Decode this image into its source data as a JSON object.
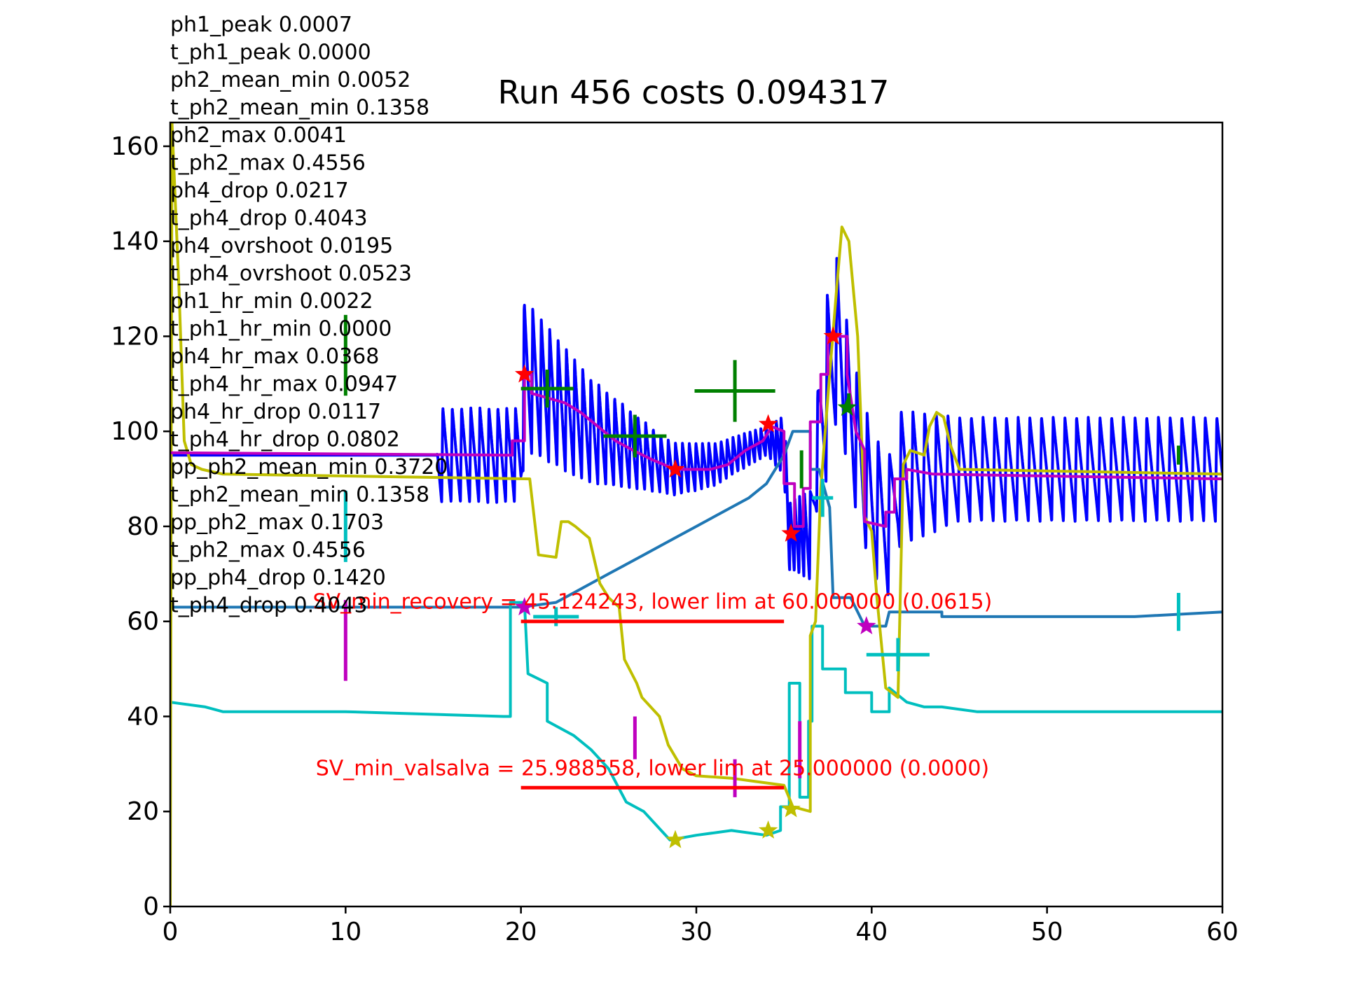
{
  "chart_data": {
    "type": "line",
    "title": "Run 456 costs 0.094317",
    "xlabel": "",
    "ylabel": "",
    "xlim": [
      0,
      60
    ],
    "ylim": [
      0,
      165
    ],
    "xticks": [
      0,
      10,
      20,
      30,
      40,
      50,
      60
    ],
    "yticks": [
      0,
      20,
      40,
      60,
      80,
      100,
      120,
      140,
      160
    ],
    "grid": false,
    "colors": {
      "blue": "#0000ff",
      "steel": "#1f77b4",
      "cyan": "#00bfbf",
      "olive": "#bfbf00",
      "magenta": "#bf00bf",
      "green": "#008000",
      "red": "#ff0000"
    },
    "metrics_text": [
      "ph1_peak 0.0007",
      "t_ph1_peak 0.0000",
      "ph2_mean_min 0.0052",
      "t_ph2_mean_min 0.1358",
      "ph2_max 0.0041",
      "t_ph2_max 0.4556",
      "ph4_drop 0.0217",
      "t_ph4_drop 0.4043",
      "ph4_ovrshoot 0.0195",
      "t_ph4_ovrshoot 0.0523",
      "ph1_hr_min 0.0022",
      "t_ph1_hr_min 0.0000",
      "ph4_hr_max 0.0368",
      "t_ph4_hr_max 0.0947",
      "ph4_hr_drop 0.0117",
      "t_ph4_hr_drop 0.0802",
      "pp_ph2_mean_min 0.3720",
      "t_ph2_mean_min 0.1358",
      "pp_ph2_max 0.1703",
      "t_ph2_max 0.4556",
      "pp_ph4_drop 0.1420",
      "t_ph4_drop 0.4043"
    ],
    "limit_annotations": [
      {
        "text": "SV_min_recovery = 45.124243, lower lim at 60.000000 (0.0615)",
        "x_start": 20,
        "x_end": 35,
        "y": 60
      },
      {
        "text": "SV_min_valsalva = 25.988558, lower lim at 25.000000 (0.0000)",
        "x_start": 20,
        "x_end": 35,
        "y": 25
      }
    ],
    "series": [
      {
        "color": "blue",
        "style": "pulsatile",
        "base": [
          [
            0,
            95
          ],
          [
            15.2,
            95
          ],
          [
            20,
            95
          ],
          [
            20.2,
            112
          ],
          [
            24,
            100
          ],
          [
            28.7,
            92
          ],
          [
            31,
            93
          ],
          [
            34,
            98
          ],
          [
            35,
            97
          ],
          [
            35.3,
            78
          ],
          [
            36.5,
            78
          ],
          [
            37,
            100
          ],
          [
            38,
            120
          ],
          [
            39,
            100
          ],
          [
            40,
            85
          ],
          [
            41,
            80
          ],
          [
            41.5,
            90
          ],
          [
            45,
            92
          ],
          [
            60,
            92
          ]
        ],
        "amp": [
          [
            0,
            0
          ],
          [
            15.2,
            0
          ],
          [
            15.3,
            20
          ],
          [
            20,
            20
          ],
          [
            20.2,
            32
          ],
          [
            28,
            12
          ],
          [
            34,
            6
          ],
          [
            35.2,
            14
          ],
          [
            36.8,
            20
          ],
          [
            37.5,
            40
          ],
          [
            38.5,
            30
          ],
          [
            41,
            30
          ],
          [
            45,
            22
          ],
          [
            60,
            22
          ]
        ],
        "bpm": [
          [
            0,
            75
          ],
          [
            28,
            140
          ],
          [
            30,
            160
          ],
          [
            34,
            200
          ],
          [
            35,
            230
          ],
          [
            36,
            220
          ],
          [
            37,
            110
          ],
          [
            38,
            110
          ],
          [
            41,
            90
          ],
          [
            60,
            90
          ]
        ]
      },
      {
        "color": "steel",
        "style": "line",
        "points": [
          [
            0,
            63
          ],
          [
            20,
            63
          ],
          [
            22,
            64
          ],
          [
            23,
            66
          ],
          [
            24,
            68
          ],
          [
            25,
            70
          ],
          [
            26,
            72
          ],
          [
            27,
            74
          ],
          [
            28,
            76
          ],
          [
            29,
            78
          ],
          [
            30,
            80
          ],
          [
            31,
            82
          ],
          [
            32,
            84
          ],
          [
            33,
            86
          ],
          [
            34,
            89
          ],
          [
            35,
            95
          ],
          [
            35.5,
            100
          ],
          [
            36.5,
            100
          ],
          [
            36.5,
            92
          ],
          [
            37,
            92
          ],
          [
            37.3,
            88
          ],
          [
            37.6,
            84
          ],
          [
            37.8,
            65
          ],
          [
            38.8,
            65
          ],
          [
            39.6,
            59
          ],
          [
            40.8,
            59
          ],
          [
            41,
            62
          ],
          [
            44,
            62
          ],
          [
            44,
            61
          ],
          [
            55,
            61
          ],
          [
            60,
            62
          ]
        ]
      },
      {
        "color": "cyan",
        "style": "line",
        "points": [
          [
            0,
            43
          ],
          [
            2,
            42
          ],
          [
            3,
            41
          ],
          [
            10,
            41
          ],
          [
            19,
            40
          ],
          [
            19.4,
            40
          ],
          [
            19.4,
            64
          ],
          [
            20.2,
            64
          ],
          [
            20.4,
            49
          ],
          [
            21.5,
            47
          ],
          [
            21.5,
            39
          ],
          [
            23,
            36
          ],
          [
            24,
            33
          ],
          [
            25,
            29
          ],
          [
            26,
            22
          ],
          [
            27,
            20
          ],
          [
            28.5,
            14
          ],
          [
            30,
            15
          ],
          [
            32,
            16
          ],
          [
            34,
            15
          ],
          [
            34.8,
            16
          ],
          [
            34.8,
            21
          ],
          [
            35.3,
            21
          ],
          [
            35.3,
            47
          ],
          [
            35.9,
            47
          ],
          [
            35.9,
            23
          ],
          [
            36.4,
            23
          ],
          [
            36.4,
            39
          ],
          [
            36.6,
            39
          ],
          [
            36.6,
            59
          ],
          [
            37.2,
            59
          ],
          [
            37.2,
            50
          ],
          [
            38.5,
            50
          ],
          [
            38.5,
            45
          ],
          [
            40,
            45
          ],
          [
            40,
            41
          ],
          [
            41,
            41
          ],
          [
            41,
            46
          ],
          [
            42,
            43
          ],
          [
            43,
            42
          ],
          [
            44,
            42
          ],
          [
            46,
            41
          ],
          [
            60,
            41
          ]
        ]
      },
      {
        "color": "olive",
        "style": "line",
        "points": [
          [
            0,
            0
          ],
          [
            0.1,
            165
          ],
          [
            0.5,
            130
          ],
          [
            0.8,
            98
          ],
          [
            1.2,
            93
          ],
          [
            1.8,
            92
          ],
          [
            3,
            91
          ],
          [
            20.5,
            90
          ],
          [
            21,
            74
          ],
          [
            22,
            73.5
          ],
          [
            22.3,
            81
          ],
          [
            22.7,
            81
          ],
          [
            23.1,
            80
          ],
          [
            23.9,
            77.5
          ],
          [
            24.5,
            68
          ],
          [
            25,
            65
          ],
          [
            25.6,
            63
          ],
          [
            25.9,
            52
          ],
          [
            26.6,
            47
          ],
          [
            26.9,
            44
          ],
          [
            27.9,
            40
          ],
          [
            28.4,
            34
          ],
          [
            29.2,
            29
          ],
          [
            30,
            27.5
          ],
          [
            32,
            27
          ],
          [
            33,
            26.5
          ],
          [
            35,
            25.5
          ],
          [
            35.5,
            21
          ],
          [
            36.5,
            20
          ],
          [
            36.5,
            57
          ],
          [
            36.8,
            60
          ],
          [
            37.1,
            88
          ],
          [
            37.6,
            112
          ],
          [
            38,
            130
          ],
          [
            38.3,
            143
          ],
          [
            38.7,
            140
          ],
          [
            39.2,
            120
          ],
          [
            39.6,
            82
          ],
          [
            40,
            79
          ],
          [
            40.3,
            65
          ],
          [
            40.8,
            46
          ],
          [
            41.5,
            44
          ],
          [
            41.8,
            93
          ],
          [
            42.2,
            96
          ],
          [
            43,
            95
          ],
          [
            43.3,
            101
          ],
          [
            43.7,
            104
          ],
          [
            44.1,
            103
          ],
          [
            44.5,
            97
          ],
          [
            45,
            92
          ],
          [
            60,
            91
          ]
        ]
      },
      {
        "color": "magenta",
        "style": "step",
        "points": [
          [
            0,
            95.5
          ],
          [
            19.5,
            95
          ],
          [
            19.5,
            98
          ],
          [
            20.2,
            98
          ],
          [
            20.2,
            112
          ],
          [
            20.6,
            112
          ],
          [
            20.6,
            108
          ],
          [
            22.5,
            106
          ],
          [
            23.4,
            104
          ],
          [
            24.4,
            101
          ],
          [
            25.4,
            98
          ],
          [
            26.4,
            96
          ],
          [
            27.5,
            94
          ],
          [
            28.8,
            92
          ],
          [
            30.8,
            92
          ],
          [
            31.8,
            93
          ],
          [
            32.8,
            96
          ],
          [
            33.8,
            98
          ],
          [
            34.3,
            101
          ],
          [
            34.3,
            101
          ],
          [
            35,
            100
          ],
          [
            35,
            89
          ],
          [
            35.6,
            89
          ],
          [
            35.6,
            80
          ],
          [
            36.1,
            80
          ],
          [
            36.1,
            88
          ],
          [
            36.5,
            88
          ],
          [
            36.5,
            102
          ],
          [
            37.1,
            102
          ],
          [
            37.1,
            112
          ],
          [
            37.5,
            112
          ],
          [
            37.5,
            120
          ],
          [
            38.6,
            120
          ],
          [
            38.6,
            112
          ],
          [
            39.1,
            100
          ],
          [
            39.6,
            96
          ],
          [
            39.6,
            81
          ],
          [
            40.8,
            80
          ],
          [
            40.8,
            83
          ],
          [
            41.3,
            83
          ],
          [
            41.3,
            90
          ],
          [
            42,
            90
          ],
          [
            42,
            92
          ],
          [
            43.5,
            91
          ],
          [
            60,
            90
          ]
        ]
      }
    ],
    "markers": [
      {
        "marker": "star",
        "color": "red",
        "points": [
          [
            20.2,
            112
          ],
          [
            28.8,
            92
          ],
          [
            34.1,
            101.5
          ],
          [
            35.4,
            78.5
          ],
          [
            37.8,
            120
          ]
        ]
      },
      {
        "marker": "star",
        "color": "olive",
        "points": [
          [
            28.8,
            14
          ],
          [
            34.1,
            16
          ],
          [
            35.4,
            20.5
          ]
        ]
      },
      {
        "marker": "star",
        "color": "magenta",
        "points": [
          [
            20.2,
            63
          ],
          [
            39.7,
            59
          ]
        ]
      },
      {
        "marker": "star",
        "color": "green",
        "points": [
          [
            38.6,
            105
          ]
        ]
      }
    ],
    "error_bars": [
      {
        "color": "green",
        "x": 10,
        "y": 116,
        "dx": 0,
        "dy": 8.5
      },
      {
        "color": "green",
        "x": 21.5,
        "y": 109,
        "dx": 1.5,
        "dy": 4
      },
      {
        "color": "green",
        "x": 26.5,
        "y": 99,
        "dx": 1.8,
        "dy": 4.5
      },
      {
        "color": "green",
        "x": 32.2,
        "y": 108.5,
        "dx": 2.3,
        "dy": 6.5
      },
      {
        "color": "green",
        "x": 36,
        "y": 92,
        "dx": 0,
        "dy": 4
      },
      {
        "color": "green",
        "x": 38.7,
        "y": 106,
        "dx": 0,
        "dy": 2
      },
      {
        "color": "green",
        "x": 57.5,
        "y": 95,
        "dx": 0,
        "dy": 2
      },
      {
        "color": "cyan",
        "x": 10,
        "y": 80,
        "dx": 0,
        "dy": 7.5
      },
      {
        "color": "cyan",
        "x": 22,
        "y": 61,
        "dx": 1.3,
        "dy": 2
      },
      {
        "color": "cyan",
        "x": 37.2,
        "y": 86,
        "dx": 0.6,
        "dy": 4
      },
      {
        "color": "cyan",
        "x": 41.5,
        "y": 53,
        "dx": 1.8,
        "dy": 3.5
      },
      {
        "color": "cyan",
        "x": 57.5,
        "y": 62,
        "dx": 0,
        "dy": 4
      },
      {
        "color": "magenta",
        "x": 10,
        "y": 56,
        "dx": 0,
        "dy": 8.5
      },
      {
        "color": "magenta",
        "x": 26.5,
        "y": 35.5,
        "dx": 0,
        "dy": 4.5
      },
      {
        "color": "magenta",
        "x": 32.2,
        "y": 27,
        "dx": 0,
        "dy": 4
      },
      {
        "color": "magenta",
        "x": 35.9,
        "y": 33,
        "dx": 0,
        "dy": 6
      }
    ]
  }
}
